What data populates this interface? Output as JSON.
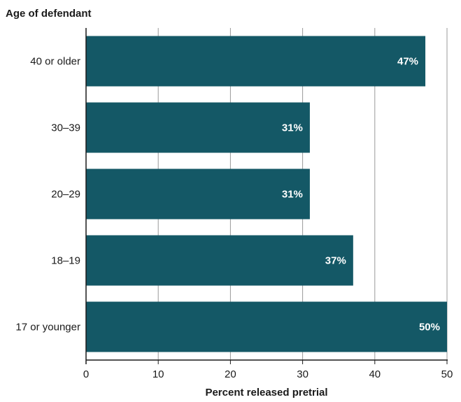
{
  "chart_data": {
    "type": "bar",
    "orientation": "horizontal",
    "categories": [
      "40 or older",
      "30–39",
      "20–29",
      "18–19",
      "17 or younger"
    ],
    "values": [
      47,
      31,
      31,
      37,
      50
    ],
    "data_labels": [
      "47%",
      "31%",
      "31%",
      "37%",
      "50%"
    ],
    "ylabel": "Age of defendant",
    "xlabel": "Percent released pretrial",
    "xlim": [
      0,
      50
    ],
    "xticks": [
      0,
      10,
      20,
      30,
      40,
      50
    ],
    "grid": true,
    "legend": "none",
    "bar_color": "#145866",
    "label_color": "#ffffff"
  }
}
